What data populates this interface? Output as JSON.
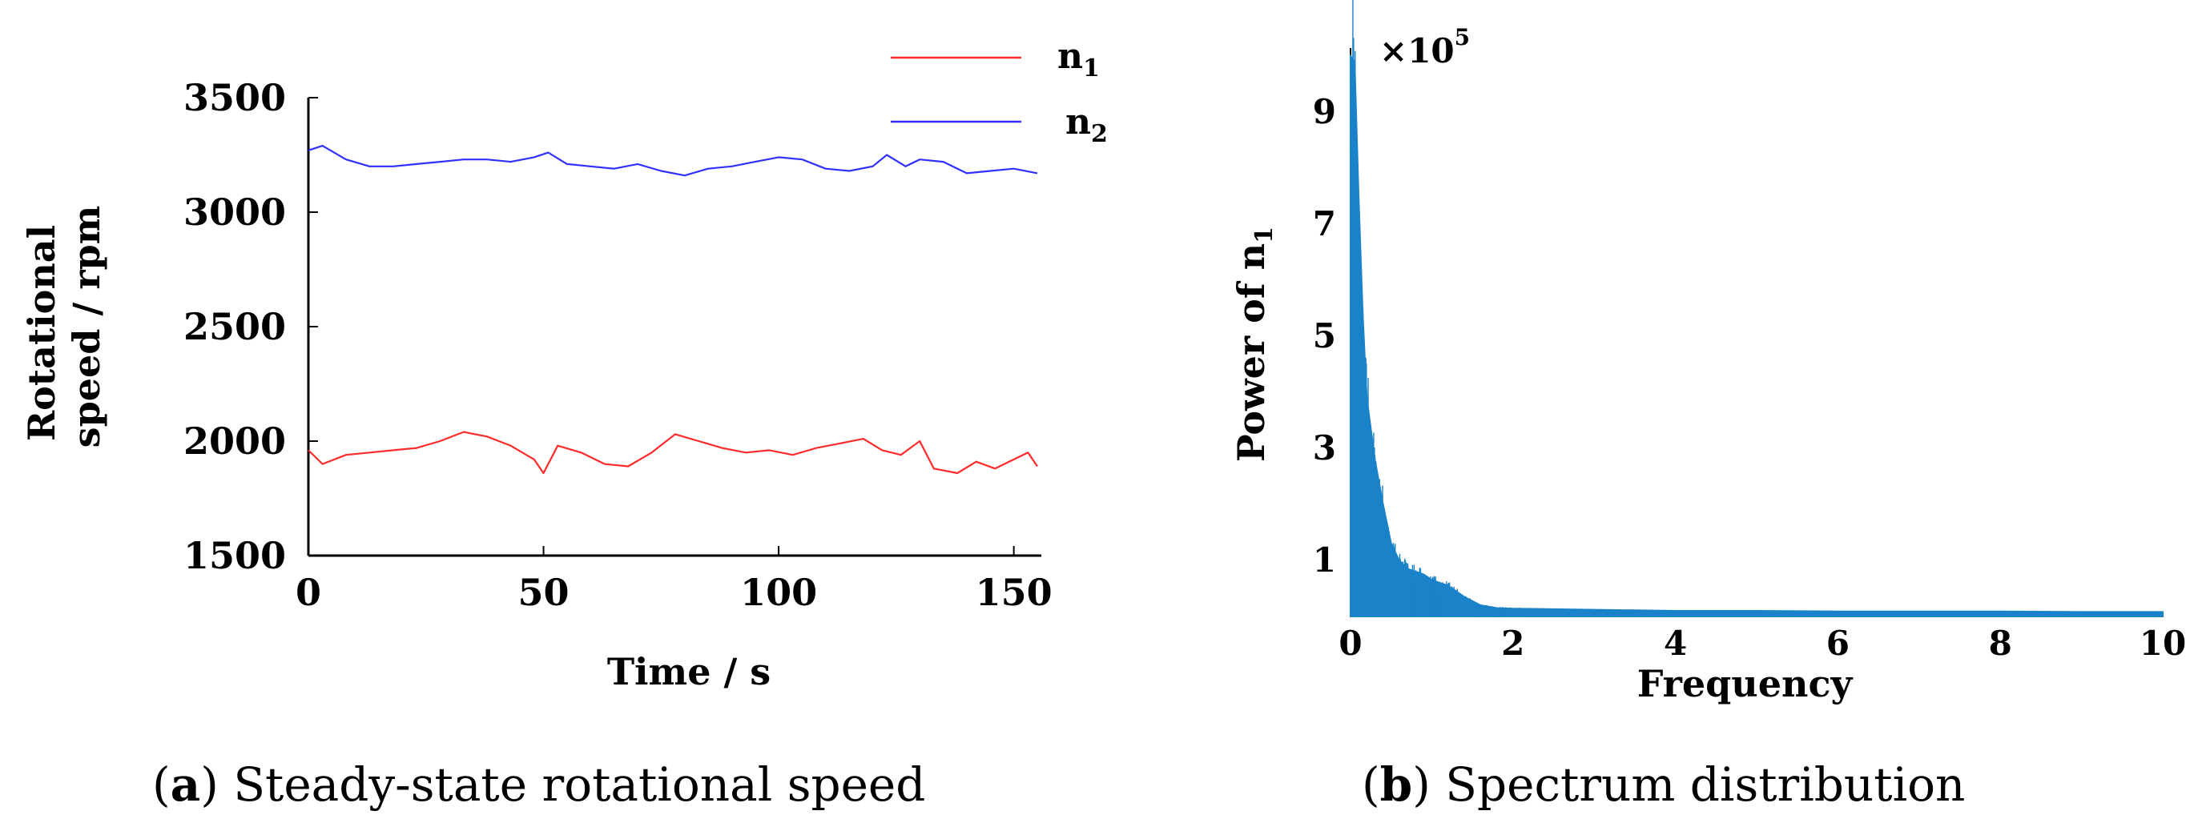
{
  "chart_data": [
    {
      "type": "line",
      "xlabel": "Time / s",
      "ylabel_lines": [
        "Rotational",
        "speed / rpm"
      ],
      "x_ticks": [
        0,
        50,
        100,
        150
      ],
      "y_ticks": [
        1500,
        2000,
        2500,
        3000,
        3500
      ],
      "xlim": [
        0,
        155
      ],
      "ylim": [
        1500,
        3500
      ],
      "series": [
        {
          "name": "n",
          "subscript": "1",
          "color": "#ff2a2a",
          "x": [
            0,
            3,
            8,
            13,
            18,
            23,
            28,
            33,
            38,
            43,
            48,
            50,
            53,
            58,
            63,
            68,
            73,
            78,
            83,
            88,
            93,
            98,
            103,
            108,
            113,
            118,
            122,
            126,
            130,
            133,
            138,
            142,
            146,
            150,
            153,
            155
          ],
          "y": [
            1960,
            1900,
            1940,
            1950,
            1960,
            1970,
            2000,
            2040,
            2020,
            1980,
            1920,
            1860,
            1980,
            1950,
            1900,
            1890,
            1950,
            2030,
            2000,
            1970,
            1950,
            1960,
            1940,
            1970,
            1990,
            2010,
            1960,
            1940,
            2000,
            1880,
            1860,
            1910,
            1880,
            1920,
            1950,
            1890
          ]
        },
        {
          "name": "n",
          "subscript": "2",
          "color": "#3030ff",
          "x": [
            0,
            3,
            8,
            13,
            18,
            23,
            28,
            33,
            38,
            43,
            48,
            51,
            55,
            60,
            65,
            70,
            75,
            80,
            85,
            90,
            95,
            100,
            105,
            110,
            115,
            120,
            123,
            127,
            130,
            135,
            140,
            145,
            150,
            155
          ],
          "y": [
            3270,
            3290,
            3230,
            3200,
            3200,
            3210,
            3220,
            3230,
            3230,
            3220,
            3240,
            3260,
            3210,
            3200,
            3190,
            3210,
            3180,
            3160,
            3190,
            3200,
            3220,
            3240,
            3230,
            3190,
            3180,
            3200,
            3250,
            3200,
            3230,
            3220,
            3170,
            3180,
            3190,
            3170
          ]
        }
      ],
      "caption": {
        "label": "a",
        "text": "Steady-state rotational speed"
      }
    },
    {
      "type": "area",
      "xlabel": "Frequency",
      "ylabel_prefix": "Power of ",
      "ylabel_var": "n",
      "ylabel_sub": "1",
      "multiplier": "×10",
      "multiplier_exp": "5",
      "x_ticks": [
        0,
        2,
        4,
        6,
        8,
        10
      ],
      "y_ticks": [
        1,
        3,
        5,
        7,
        9
      ],
      "xlim": [
        0,
        10
      ],
      "ylim": [
        0,
        10
      ],
      "color": "#1a82c8",
      "envelope_x": [
        0,
        0.05,
        0.1,
        0.15,
        0.2,
        0.3,
        0.4,
        0.5,
        0.6,
        0.7,
        0.8,
        0.9,
        1.0,
        1.2,
        1.4,
        1.6,
        1.8,
        2,
        3,
        4,
        5,
        6,
        7,
        8,
        9,
        10
      ],
      "envelope_y": [
        10.0,
        9.9,
        7.5,
        5.4,
        3.9,
        2.8,
        2.0,
        1.3,
        1.0,
        0.85,
        0.8,
        0.75,
        0.65,
        0.55,
        0.35,
        0.2,
        0.15,
        0.14,
        0.12,
        0.1,
        0.1,
        0.09,
        0.09,
        0.09,
        0.08,
        0.08
      ],
      "caption": {
        "label": "b",
        "text": "Spectrum distribution"
      }
    }
  ]
}
